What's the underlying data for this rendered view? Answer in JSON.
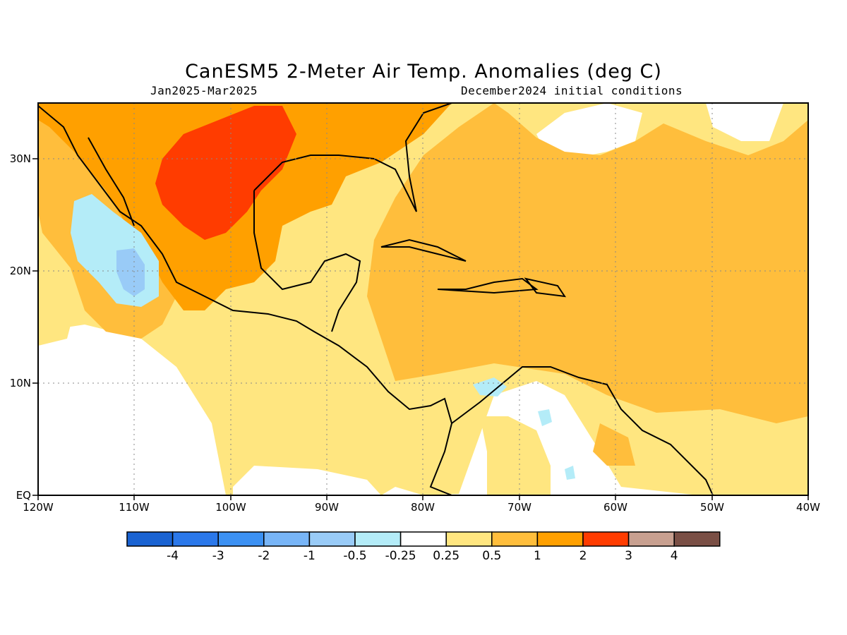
{
  "header": {
    "title": "CanESM5 2-Meter Air Temp. Anomalies (deg C)",
    "period": "Jan2025-Mar2025",
    "init": "December2024 initial conditions"
  },
  "map": {
    "lon_range": [
      -120,
      -40
    ],
    "lat_range": [
      0,
      35
    ],
    "lat_labels": [
      "30N",
      "20N",
      "10N",
      "EQ"
    ],
    "lon_labels": [
      "120W",
      "110W",
      "100W",
      "90W",
      "80W",
      "70W",
      "60W",
      "50W",
      "40W"
    ],
    "gridlines": true
  },
  "colorbar": {
    "colors": [
      "#1a63d2",
      "#2b78ea",
      "#3c91f3",
      "#78b5f7",
      "#99cbf7",
      "#b4ecf8",
      "#ffffff",
      "#ffe680",
      "#ffbe3c",
      "#ffa000",
      "#ff3c00",
      "#c8a090",
      "#7a4f45"
    ],
    "labels": [
      "-4",
      "-3",
      "-2",
      "-1",
      "-0.5",
      "-0.25",
      "0.25",
      "0.5",
      "1",
      "2",
      "3",
      "4"
    ]
  }
}
